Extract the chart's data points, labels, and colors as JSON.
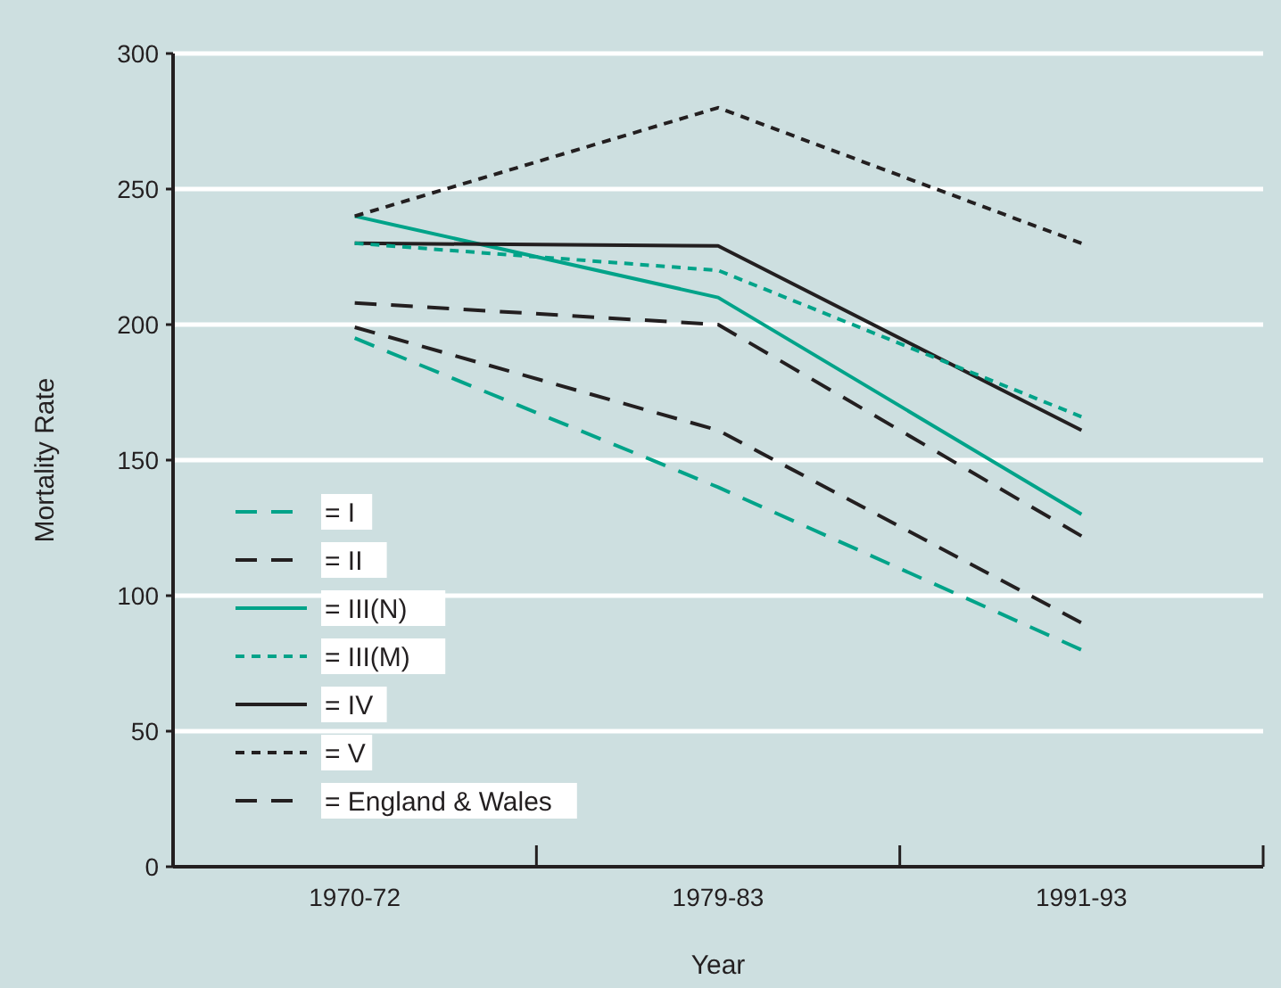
{
  "chart_data": {
    "type": "line",
    "xlabel": "Year",
    "ylabel": "Mortality Rate",
    "categories": [
      "1970-72",
      "1979-83",
      "1991-93"
    ],
    "ylim": [
      0,
      300
    ],
    "yticks": [
      0,
      50,
      100,
      150,
      200,
      250,
      300
    ],
    "grid": "y",
    "legend": "bottom left",
    "series": [
      {
        "name": "= I",
        "color": "#00a389",
        "line_style": "dashed",
        "values": [
          195,
          140,
          80
        ]
      },
      {
        "name": "= II",
        "color": "#231f20",
        "line_style": "dashed",
        "values": [
          199,
          161,
          90
        ]
      },
      {
        "name": "= III(N)",
        "color": "#00a389",
        "line_style": "solid",
        "values": [
          240,
          210,
          130
        ]
      },
      {
        "name": "= III(M)",
        "color": "#00a389",
        "line_style": "dotted",
        "values": [
          230,
          220,
          166
        ]
      },
      {
        "name": "= IV",
        "color": "#231f20",
        "line_style": "solid",
        "values": [
          230,
          229,
          161
        ]
      },
      {
        "name": "= V",
        "color": "#231f20",
        "line_style": "dotted",
        "values": [
          240,
          280,
          230
        ]
      },
      {
        "name": "= England & Wales",
        "color": "#231f20",
        "line_style": "dashed",
        "values": [
          208,
          200,
          122
        ]
      }
    ]
  }
}
